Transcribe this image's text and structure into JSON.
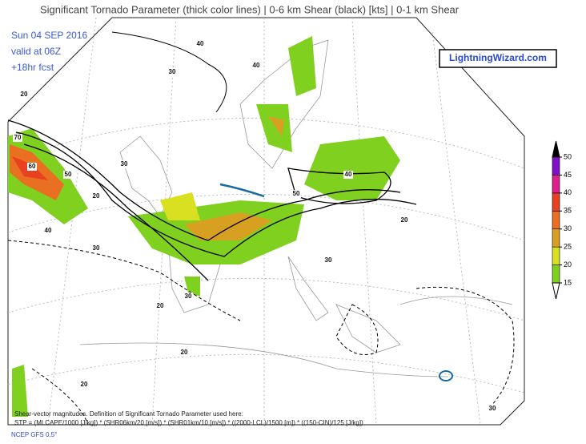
{
  "header": {
    "title": "Significant Tornado Parameter (thick color lines) | 0-6 km Shear (black) [kts] | 0-1 km Shear"
  },
  "info": {
    "date": "Sun 04 SEP 2016",
    "valid": "valid at 06Z",
    "forecast": "+18hr fcst"
  },
  "brand": "LightningWizard.com",
  "colorbar": {
    "ticks": [
      15,
      20,
      25,
      30,
      35,
      40,
      45,
      50
    ],
    "colors": [
      "#80d020",
      "#d8e020",
      "#d8a020",
      "#e87020",
      "#e84020",
      "#e02090",
      "#8010c8"
    ]
  },
  "contour_labels": [
    40,
    30,
    20,
    70,
    60,
    50,
    40,
    30,
    20,
    40,
    50,
    30,
    20,
    30,
    40,
    20,
    30,
    20,
    20,
    30
  ],
  "footer": {
    "note": "Shear-vector magnitudes. Definition of Significant Tornado Parameter used here:",
    "formula": "STP = (MLCAPE/1000 [J/kg]) * (SHR06km/20 [m/s]) * (SHR01km/10 [m/s]) * ((2000-LCL)/1500 [m]) * ((150-CIN)/125 [J/kg])",
    "source": "NCEP GFS 0.5°"
  }
}
